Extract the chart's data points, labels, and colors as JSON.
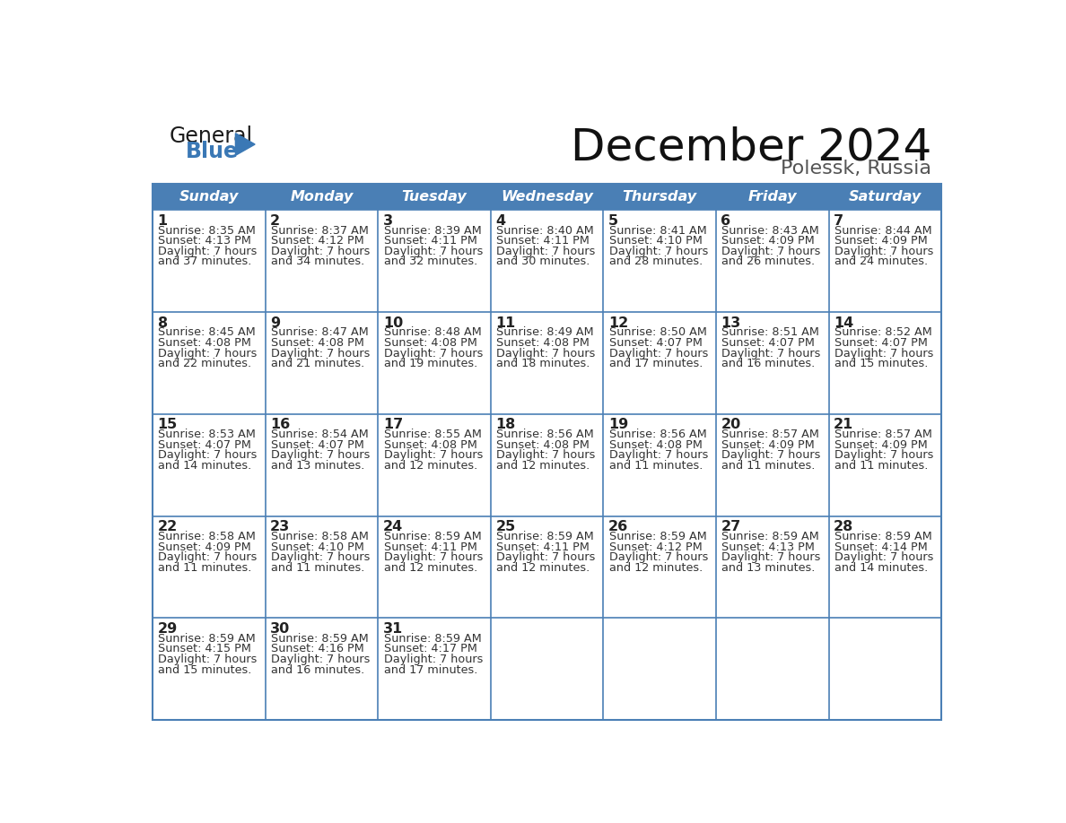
{
  "title": "December 2024",
  "subtitle": "Polessk, Russia",
  "days_of_week": [
    "Sunday",
    "Monday",
    "Tuesday",
    "Wednesday",
    "Thursday",
    "Friday",
    "Saturday"
  ],
  "header_bg": "#4a7fb5",
  "header_text_color": "#ffffff",
  "cell_border_color": "#4a7fb5",
  "day_number_color": "#222222",
  "cell_text_color": "#333333",
  "background_color": "#ffffff",
  "title_color": "#111111",
  "subtitle_color": "#555555",
  "calendar_data": [
    [
      {
        "day": 1,
        "sunrise": "8:35 AM",
        "sunset": "4:13 PM",
        "daylight_h": "7 hours",
        "daylight_m": "37 minutes"
      },
      {
        "day": 2,
        "sunrise": "8:37 AM",
        "sunset": "4:12 PM",
        "daylight_h": "7 hours",
        "daylight_m": "34 minutes"
      },
      {
        "day": 3,
        "sunrise": "8:39 AM",
        "sunset": "4:11 PM",
        "daylight_h": "7 hours",
        "daylight_m": "32 minutes"
      },
      {
        "day": 4,
        "sunrise": "8:40 AM",
        "sunset": "4:11 PM",
        "daylight_h": "7 hours",
        "daylight_m": "30 minutes"
      },
      {
        "day": 5,
        "sunrise": "8:41 AM",
        "sunset": "4:10 PM",
        "daylight_h": "7 hours",
        "daylight_m": "28 minutes"
      },
      {
        "day": 6,
        "sunrise": "8:43 AM",
        "sunset": "4:09 PM",
        "daylight_h": "7 hours",
        "daylight_m": "26 minutes"
      },
      {
        "day": 7,
        "sunrise": "8:44 AM",
        "sunset": "4:09 PM",
        "daylight_h": "7 hours",
        "daylight_m": "24 minutes"
      }
    ],
    [
      {
        "day": 8,
        "sunrise": "8:45 AM",
        "sunset": "4:08 PM",
        "daylight_h": "7 hours",
        "daylight_m": "22 minutes"
      },
      {
        "day": 9,
        "sunrise": "8:47 AM",
        "sunset": "4:08 PM",
        "daylight_h": "7 hours",
        "daylight_m": "21 minutes"
      },
      {
        "day": 10,
        "sunrise": "8:48 AM",
        "sunset": "4:08 PM",
        "daylight_h": "7 hours",
        "daylight_m": "19 minutes"
      },
      {
        "day": 11,
        "sunrise": "8:49 AM",
        "sunset": "4:08 PM",
        "daylight_h": "7 hours",
        "daylight_m": "18 minutes"
      },
      {
        "day": 12,
        "sunrise": "8:50 AM",
        "sunset": "4:07 PM",
        "daylight_h": "7 hours",
        "daylight_m": "17 minutes"
      },
      {
        "day": 13,
        "sunrise": "8:51 AM",
        "sunset": "4:07 PM",
        "daylight_h": "7 hours",
        "daylight_m": "16 minutes"
      },
      {
        "day": 14,
        "sunrise": "8:52 AM",
        "sunset": "4:07 PM",
        "daylight_h": "7 hours",
        "daylight_m": "15 minutes"
      }
    ],
    [
      {
        "day": 15,
        "sunrise": "8:53 AM",
        "sunset": "4:07 PM",
        "daylight_h": "7 hours",
        "daylight_m": "14 minutes"
      },
      {
        "day": 16,
        "sunrise": "8:54 AM",
        "sunset": "4:07 PM",
        "daylight_h": "7 hours",
        "daylight_m": "13 minutes"
      },
      {
        "day": 17,
        "sunrise": "8:55 AM",
        "sunset": "4:08 PM",
        "daylight_h": "7 hours",
        "daylight_m": "12 minutes"
      },
      {
        "day": 18,
        "sunrise": "8:56 AM",
        "sunset": "4:08 PM",
        "daylight_h": "7 hours",
        "daylight_m": "12 minutes"
      },
      {
        "day": 19,
        "sunrise": "8:56 AM",
        "sunset": "4:08 PM",
        "daylight_h": "7 hours",
        "daylight_m": "11 minutes"
      },
      {
        "day": 20,
        "sunrise": "8:57 AM",
        "sunset": "4:09 PM",
        "daylight_h": "7 hours",
        "daylight_m": "11 minutes"
      },
      {
        "day": 21,
        "sunrise": "8:57 AM",
        "sunset": "4:09 PM",
        "daylight_h": "7 hours",
        "daylight_m": "11 minutes"
      }
    ],
    [
      {
        "day": 22,
        "sunrise": "8:58 AM",
        "sunset": "4:09 PM",
        "daylight_h": "7 hours",
        "daylight_m": "11 minutes"
      },
      {
        "day": 23,
        "sunrise": "8:58 AM",
        "sunset": "4:10 PM",
        "daylight_h": "7 hours",
        "daylight_m": "11 minutes"
      },
      {
        "day": 24,
        "sunrise": "8:59 AM",
        "sunset": "4:11 PM",
        "daylight_h": "7 hours",
        "daylight_m": "12 minutes"
      },
      {
        "day": 25,
        "sunrise": "8:59 AM",
        "sunset": "4:11 PM",
        "daylight_h": "7 hours",
        "daylight_m": "12 minutes"
      },
      {
        "day": 26,
        "sunrise": "8:59 AM",
        "sunset": "4:12 PM",
        "daylight_h": "7 hours",
        "daylight_m": "12 minutes"
      },
      {
        "day": 27,
        "sunrise": "8:59 AM",
        "sunset": "4:13 PM",
        "daylight_h": "7 hours",
        "daylight_m": "13 minutes"
      },
      {
        "day": 28,
        "sunrise": "8:59 AM",
        "sunset": "4:14 PM",
        "daylight_h": "7 hours",
        "daylight_m": "14 minutes"
      }
    ],
    [
      {
        "day": 29,
        "sunrise": "8:59 AM",
        "sunset": "4:15 PM",
        "daylight_h": "7 hours",
        "daylight_m": "15 minutes"
      },
      {
        "day": 30,
        "sunrise": "8:59 AM",
        "sunset": "4:16 PM",
        "daylight_h": "7 hours",
        "daylight_m": "16 minutes"
      },
      {
        "day": 31,
        "sunrise": "8:59 AM",
        "sunset": "4:17 PM",
        "daylight_h": "7 hours",
        "daylight_m": "17 minutes"
      },
      null,
      null,
      null,
      null
    ]
  ],
  "logo_general_color": "#1a1a1a",
  "logo_blue_color": "#3a78b5"
}
